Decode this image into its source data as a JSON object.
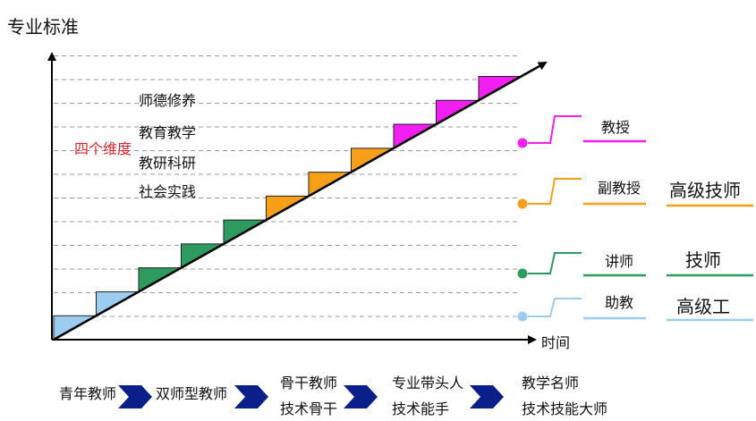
{
  "y_axis_label": "专业标准",
  "x_axis_label": "时间",
  "dimensions": {
    "label": "四个维度",
    "items": [
      "师德修养",
      "教育教学",
      "教研科研",
      "社会实践"
    ]
  },
  "ranks": [
    {
      "title": "教授",
      "equivalent": "",
      "color": "#f21ff2"
    },
    {
      "title": "副教授",
      "equivalent": "高级技师",
      "color": "#f6a019"
    },
    {
      "title": "讲师",
      "equivalent": "技师",
      "color": "#2d9a5f"
    },
    {
      "title": "助教",
      "equivalent": "高级工",
      "color": "#9cccf0"
    }
  ],
  "steps_colors": {
    "light-blue": "#9cccf0",
    "green": "#2d9a5f",
    "orange": "#f6a019",
    "magenta": "#f21ff2"
  },
  "stages": [
    {
      "lines": [
        "青年教师"
      ]
    },
    {
      "lines": [
        "双师型教师"
      ]
    },
    {
      "lines": [
        "骨干教师",
        "技术骨干"
      ]
    },
    {
      "lines": [
        "专业带头人",
        "技术能手"
      ]
    },
    {
      "lines": [
        "教学名师",
        "技术技能大师"
      ]
    }
  ],
  "arrow_color": "#0a1f8a"
}
